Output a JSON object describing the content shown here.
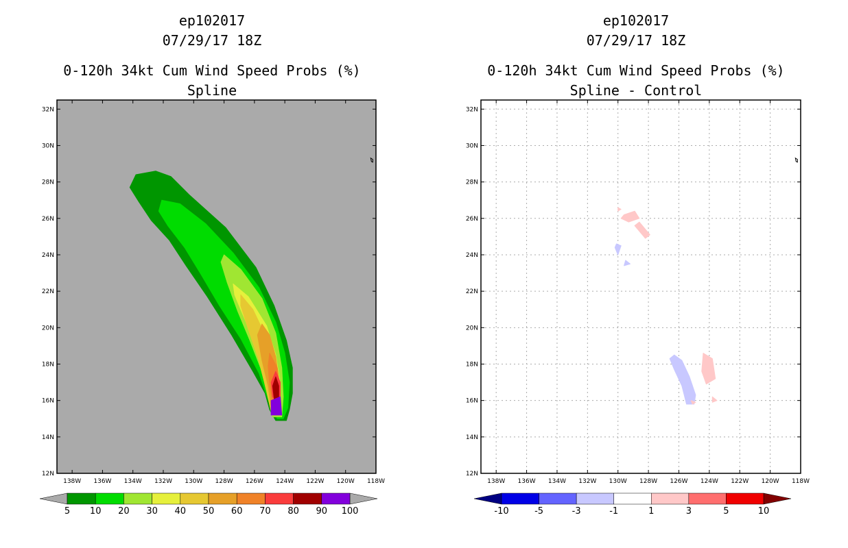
{
  "chart_data": [
    {
      "type": "contour-map",
      "storm_id": "ep102017",
      "date": "07/29/17 18Z",
      "title": "0-120h 34kt Cum Wind Speed Probs (%)",
      "subtitle": "Spline",
      "x_ticks": [
        "138W",
        "136W",
        "134W",
        "132W",
        "130W",
        "128W",
        "126W",
        "124W",
        "122W",
        "120W",
        "118W"
      ],
      "y_ticks": [
        "12N",
        "14N",
        "16N",
        "18N",
        "20N",
        "22N",
        "24N",
        "26N",
        "28N",
        "30N",
        "32N"
      ],
      "xlim": [
        -139,
        -118
      ],
      "ylim": [
        12,
        32.5
      ],
      "background": "#aaaaaa",
      "grid": false,
      "colorbar": {
        "labels": [
          "5",
          "10",
          "20",
          "30",
          "40",
          "50",
          "60",
          "70",
          "80",
          "90",
          "100"
        ],
        "colors": [
          "#009600",
          "#00dc00",
          "#a0e632",
          "#e6f03c",
          "#e6c832",
          "#e6a028",
          "#f08228",
          "#fa3c3c",
          "#a00000",
          "#8200dc"
        ],
        "under_color": "#aaaaaa",
        "over_color": "#aaaaaa"
      },
      "contours": [
        {
          "level": 5,
          "color": "#009600",
          "points": [
            [
              -133.8,
              28.4
            ],
            [
              -132.5,
              28.6
            ],
            [
              -131.5,
              28.3
            ],
            [
              -130.3,
              27.3
            ],
            [
              -127.9,
              25.5
            ],
            [
              -125.9,
              23.3
            ],
            [
              -124.7,
              21.2
            ],
            [
              -123.9,
              19.3
            ],
            [
              -123.5,
              17.8
            ],
            [
              -123.5,
              16.4
            ],
            [
              -123.7,
              15.5
            ],
            [
              -123.9,
              14.9
            ],
            [
              -124.6,
              14.9
            ],
            [
              -125.0,
              15.5
            ],
            [
              -125.3,
              16.4
            ],
            [
              -126.1,
              17.6
            ],
            [
              -127.5,
              19.6
            ],
            [
              -129.1,
              21.7
            ],
            [
              -130.5,
              23.4
            ],
            [
              -131.6,
              24.8
            ],
            [
              -132.8,
              25.9
            ],
            [
              -133.6,
              26.9
            ],
            [
              -134.2,
              27.7
            ]
          ]
        },
        {
          "level": 10,
          "color": "#00dc00",
          "points": [
            [
              -132.1,
              27.0
            ],
            [
              -130.9,
              26.8
            ],
            [
              -129.2,
              25.7
            ],
            [
              -127.4,
              24.1
            ],
            [
              -125.7,
              22.2
            ],
            [
              -124.6,
              20.3
            ],
            [
              -124.0,
              18.6
            ],
            [
              -123.7,
              17.0
            ],
            [
              -123.8,
              15.6
            ],
            [
              -124.1,
              15.0
            ],
            [
              -124.5,
              15.0
            ],
            [
              -125.0,
              15.8
            ],
            [
              -125.7,
              17.5
            ],
            [
              -126.9,
              19.4
            ],
            [
              -128.3,
              21.2
            ],
            [
              -129.5,
              22.9
            ],
            [
              -130.6,
              24.4
            ],
            [
              -131.7,
              25.6
            ],
            [
              -132.3,
              26.4
            ]
          ]
        },
        {
          "level": 20,
          "color": "#a0e632",
          "points": [
            [
              -128.0,
              24.0
            ],
            [
              -126.9,
              23.2
            ],
            [
              -125.5,
              21.6
            ],
            [
              -124.6,
              19.7
            ],
            [
              -124.2,
              17.8
            ],
            [
              -124.1,
              16.2
            ],
            [
              -124.2,
              15.1
            ],
            [
              -124.8,
              15.1
            ],
            [
              -125.1,
              16.3
            ],
            [
              -125.6,
              17.8
            ],
            [
              -126.3,
              19.3
            ],
            [
              -127.1,
              20.9
            ],
            [
              -127.8,
              22.5
            ],
            [
              -128.2,
              23.6
            ]
          ]
        },
        {
          "level": 30,
          "color": "#e6f03c",
          "points": [
            [
              -127.4,
              22.4
            ],
            [
              -126.4,
              21.7
            ],
            [
              -125.2,
              20.1
            ],
            [
              -124.6,
              18.5
            ],
            [
              -124.3,
              16.9
            ],
            [
              -124.3,
              15.2
            ],
            [
              -124.8,
              15.2
            ],
            [
              -125.2,
              16.8
            ],
            [
              -125.8,
              18.8
            ],
            [
              -126.7,
              20.6
            ],
            [
              -127.3,
              21.8
            ]
          ]
        },
        {
          "level": 40,
          "color": "#e6c832",
          "points": [
            [
              -126.9,
              21.8
            ],
            [
              -126.1,
              21.0
            ],
            [
              -125.3,
              19.6
            ],
            [
              -124.8,
              18.2
            ],
            [
              -124.5,
              16.6
            ],
            [
              -124.5,
              15.4
            ],
            [
              -124.9,
              15.4
            ],
            [
              -125.2,
              16.5
            ],
            [
              -125.7,
              18.2
            ],
            [
              -126.4,
              19.9
            ],
            [
              -126.9,
              21.2
            ]
          ]
        },
        {
          "level": 50,
          "color": "#e6a028",
          "points": [
            [
              -125.5,
              20.2
            ],
            [
              -125.0,
              19.6
            ],
            [
              -124.6,
              18.4
            ],
            [
              -124.4,
              17.2
            ],
            [
              -124.4,
              15.6
            ],
            [
              -124.9,
              15.6
            ],
            [
              -125.1,
              16.8
            ],
            [
              -125.5,
              18.2
            ],
            [
              -125.8,
              19.6
            ]
          ]
        },
        {
          "level": 60,
          "color": "#f08228",
          "points": [
            [
              -125.0,
              18.6
            ],
            [
              -124.5,
              17.8
            ],
            [
              -124.3,
              16.6
            ],
            [
              -124.4,
              15.8
            ],
            [
              -124.8,
              15.8
            ],
            [
              -125.0,
              16.8
            ],
            [
              -125.1,
              17.9
            ]
          ]
        },
        {
          "level": 70,
          "color": "#fa3c3c",
          "points": [
            [
              -124.6,
              17.6
            ],
            [
              -124.3,
              17.0
            ],
            [
              -124.3,
              16.2
            ],
            [
              -124.5,
              15.9
            ],
            [
              -124.8,
              16.2
            ],
            [
              -124.9,
              17.0
            ]
          ]
        },
        {
          "level": 80,
          "color": "#a00000",
          "points": [
            [
              -124.6,
              17.3
            ],
            [
              -124.4,
              16.8
            ],
            [
              -124.4,
              16.2
            ],
            [
              -124.7,
              16.1
            ],
            [
              -124.8,
              16.8
            ]
          ]
        },
        {
          "level": 90,
          "color": "#8200dc",
          "points": [
            [
              -124.9,
              16.0
            ],
            [
              -124.3,
              16.2
            ],
            [
              -124.2,
              15.2
            ],
            [
              -124.9,
              15.2
            ]
          ]
        }
      ],
      "island": {
        "lon": -118.3,
        "lat": 29.2
      }
    },
    {
      "type": "contour-map",
      "storm_id": "ep102017",
      "date": "07/29/17 18Z",
      "title": "0-120h 34kt Cum Wind Speed Probs (%)",
      "subtitle": "Spline - Control",
      "x_ticks": [
        "138W",
        "136W",
        "134W",
        "132W",
        "130W",
        "128W",
        "126W",
        "124W",
        "122W",
        "120W",
        "118W"
      ],
      "y_ticks": [
        "12N",
        "14N",
        "16N",
        "18N",
        "20N",
        "22N",
        "24N",
        "26N",
        "28N",
        "30N",
        "32N"
      ],
      "xlim": [
        -139,
        -118
      ],
      "ylim": [
        12,
        32.5
      ],
      "background": "#ffffff",
      "grid": true,
      "colorbar": {
        "labels": [
          "-10",
          "-5",
          "-3",
          "-1",
          "1",
          "3",
          "5",
          "10"
        ],
        "colors": [
          "#0000e6",
          "#6464ff",
          "#c8c8ff",
          "#ffffff",
          "#ffc8c8",
          "#ff6e6e",
          "#f00000"
        ],
        "under_color": "#000082",
        "over_color": "#820000"
      },
      "contours": [
        {
          "level": 1,
          "color": "#ffc8c8",
          "points": [
            [
              -129.6,
              26.2
            ],
            [
              -128.9,
              26.4
            ],
            [
              -128.6,
              26.0
            ],
            [
              -129.3,
              25.8
            ],
            [
              -129.8,
              26.0
            ]
          ]
        },
        {
          "level": 1,
          "color": "#ffc8c8",
          "points": [
            [
              -128.6,
              25.8
            ],
            [
              -127.9,
              25.1
            ],
            [
              -128.2,
              24.9
            ],
            [
              -128.9,
              25.6
            ]
          ]
        },
        {
          "level": 1,
          "color": "#ffc8c8",
          "points": [
            [
              -130.0,
              26.6
            ],
            [
              -129.8,
              26.5
            ],
            [
              -130.0,
              26.4
            ]
          ]
        },
        {
          "level": -1,
          "color": "#c8c8ff",
          "points": [
            [
              -130.1,
              24.6
            ],
            [
              -129.8,
              24.5
            ],
            [
              -130.0,
              24.0
            ],
            [
              -130.2,
              24.4
            ]
          ]
        },
        {
          "level": -1,
          "color": "#c8c8ff",
          "points": [
            [
              -129.5,
              23.7
            ],
            [
              -129.2,
              23.5
            ],
            [
              -129.6,
              23.4
            ]
          ]
        },
        {
          "level": -1,
          "color": "#c8c8ff",
          "points": [
            [
              -126.3,
              18.5
            ],
            [
              -125.8,
              18.2
            ],
            [
              -125.3,
              17.3
            ],
            [
              -124.9,
              16.3
            ],
            [
              -125.0,
              15.8
            ],
            [
              -125.5,
              15.8
            ],
            [
              -125.8,
              16.8
            ],
            [
              -126.3,
              17.7
            ],
            [
              -126.6,
              18.3
            ]
          ]
        },
        {
          "level": 1,
          "color": "#ffc8c8",
          "points": [
            [
              -124.4,
              18.6
            ],
            [
              -123.8,
              18.3
            ],
            [
              -123.6,
              17.2
            ],
            [
              -124.2,
              16.9
            ],
            [
              -124.5,
              17.6
            ]
          ]
        },
        {
          "level": 1,
          "color": "#ffc8c8",
          "points": [
            [
              -125.2,
              16.0
            ],
            [
              -124.9,
              15.9
            ],
            [
              -125.1,
              15.8
            ]
          ]
        },
        {
          "level": 1,
          "color": "#ffc8c8",
          "points": [
            [
              -123.8,
              16.2
            ],
            [
              -123.5,
              16.0
            ],
            [
              -123.8,
              15.9
            ]
          ]
        }
      ],
      "island": {
        "lon": -118.3,
        "lat": 29.2
      }
    }
  ]
}
